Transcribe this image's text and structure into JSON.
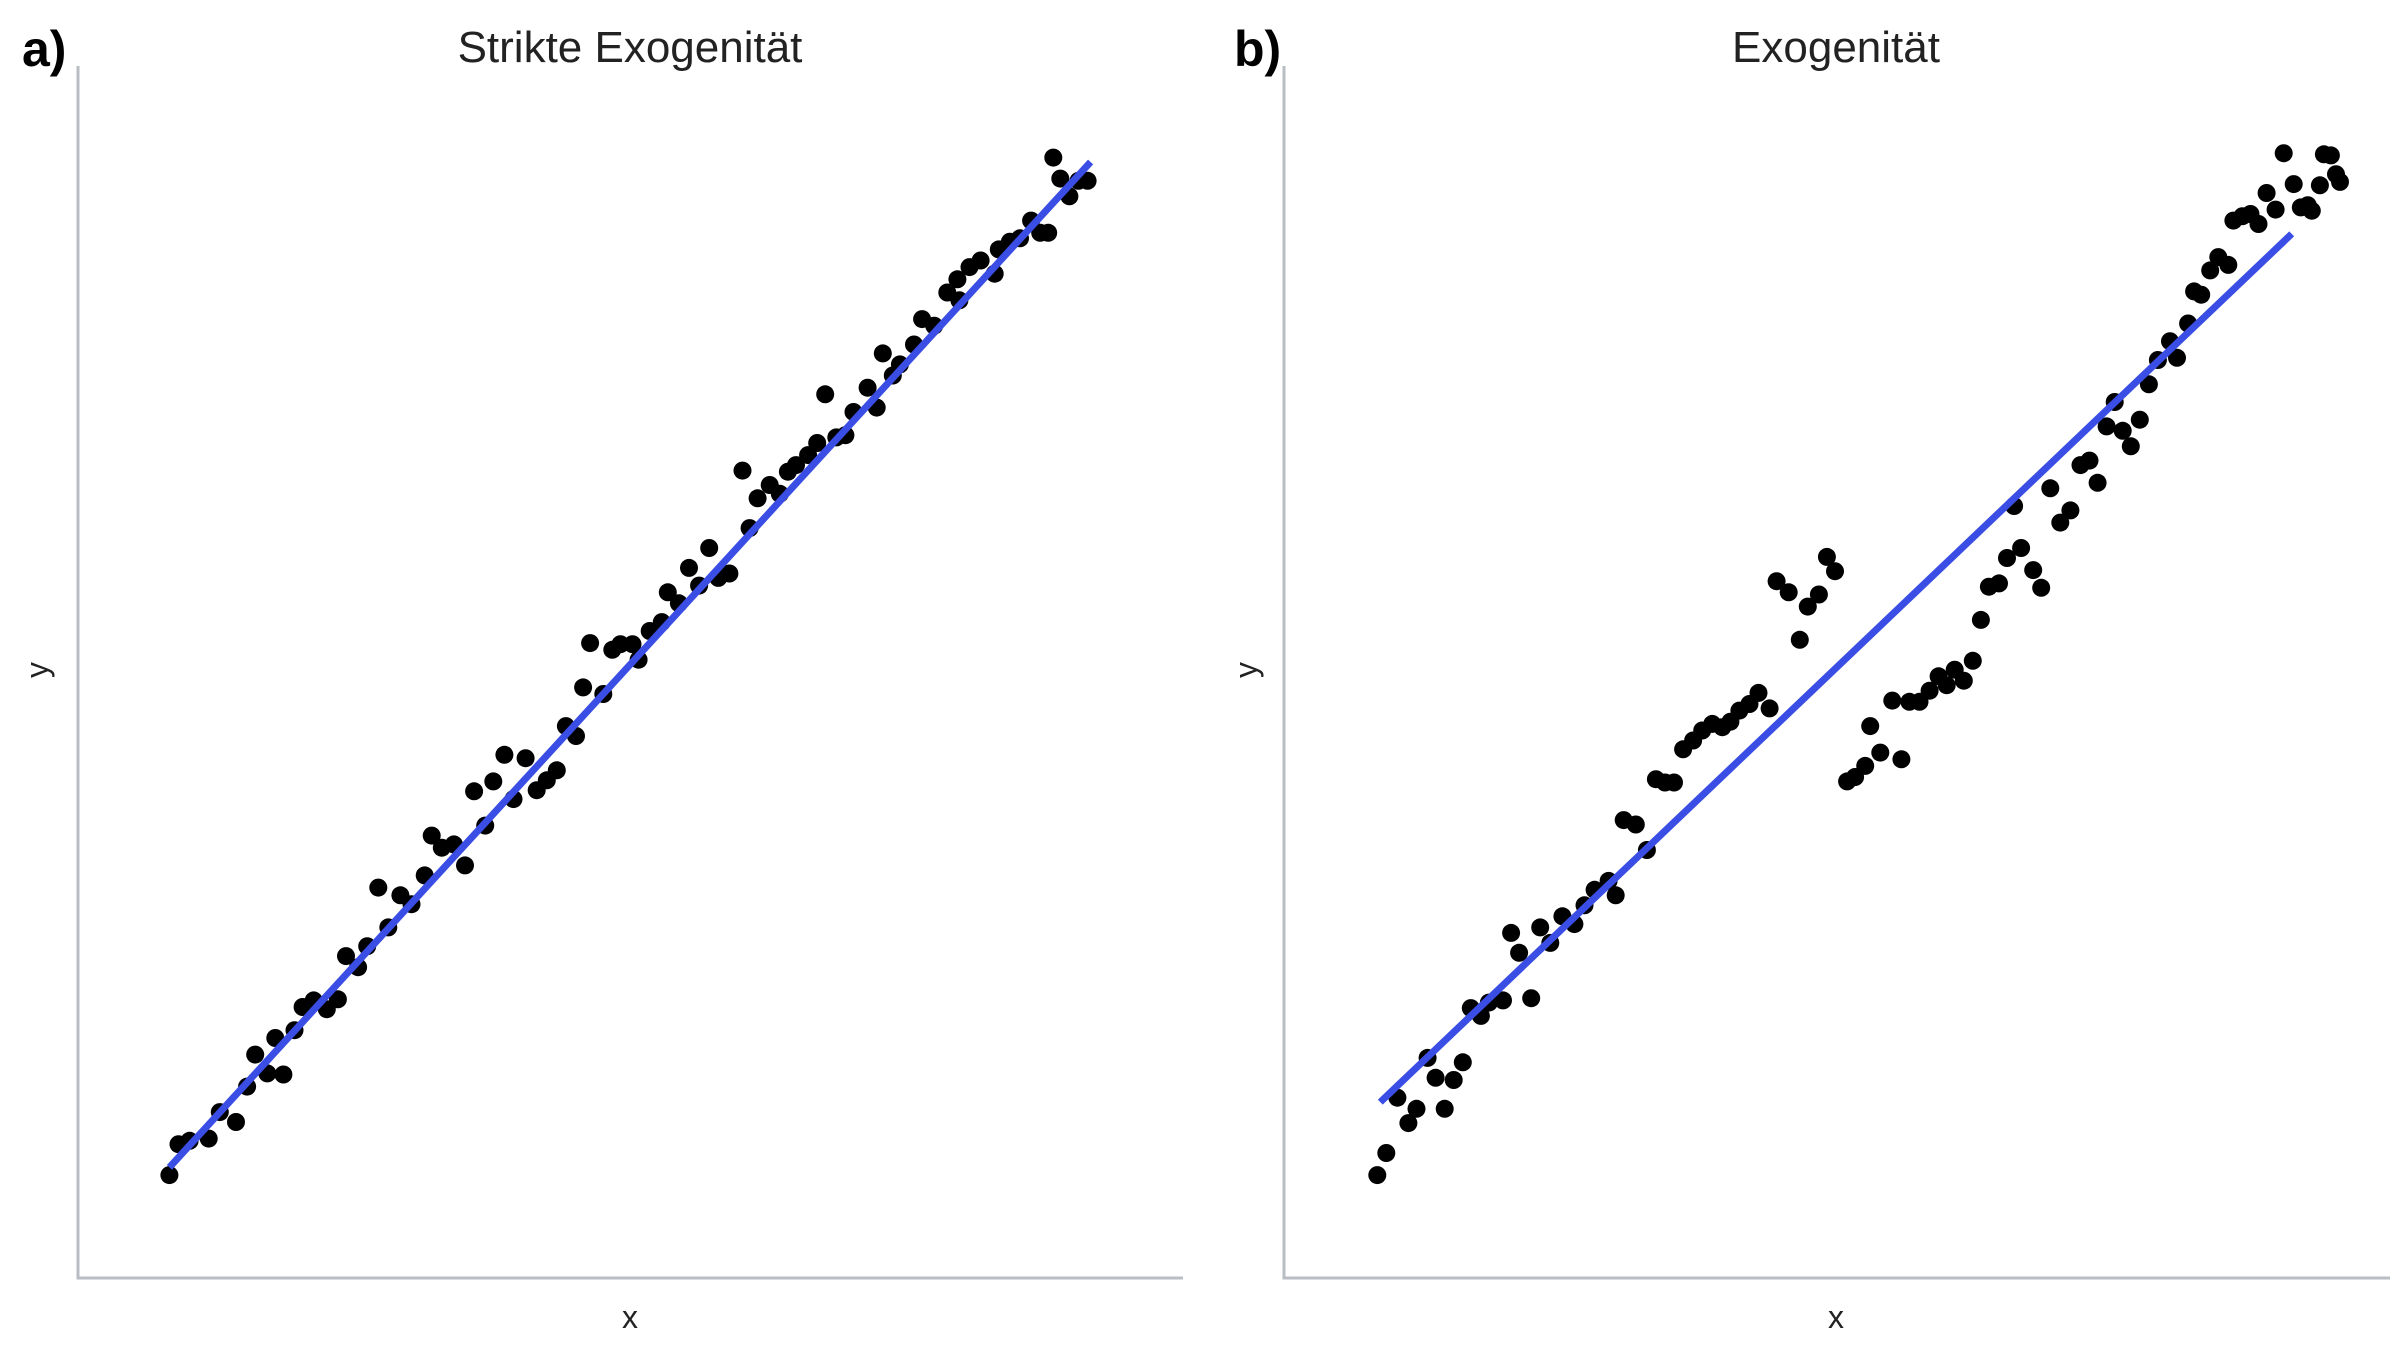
{
  "chart_data": [
    {
      "type": "scatter",
      "panel_label": "a)",
      "title": "Strikte Exogenität",
      "xlabel": "x",
      "ylabel": "y",
      "xlim": [
        0,
        100
      ],
      "ylim": [
        0,
        100
      ],
      "grid": false,
      "point_color": "#000000",
      "line_color": "#3a4ee6",
      "fit": {
        "x": [
          4.3,
          95.6
        ],
        "y": [
          5.3,
          96.2
        ]
      },
      "points": [
        [
          4.3,
          4.6
        ],
        [
          5.2,
          7.4
        ],
        [
          6.3,
          7.7
        ],
        [
          8.2,
          7.9
        ],
        [
          9.3,
          10.3
        ],
        [
          10.9,
          9.4
        ],
        [
          12.0,
          12.6
        ],
        [
          12.8,
          15.5
        ],
        [
          14.0,
          13.8
        ],
        [
          14.8,
          17.0
        ],
        [
          15.6,
          13.7
        ],
        [
          16.7,
          17.7
        ],
        [
          17.5,
          19.8
        ],
        [
          18.6,
          20.4
        ],
        [
          19.9,
          19.6
        ],
        [
          21.0,
          20.5
        ],
        [
          21.8,
          24.4
        ],
        [
          23.0,
          23.4
        ],
        [
          23.9,
          25.3
        ],
        [
          25.0,
          30.6
        ],
        [
          26.0,
          27.0
        ],
        [
          27.2,
          29.9
        ],
        [
          28.3,
          29.1
        ],
        [
          29.6,
          31.7
        ],
        [
          30.3,
          35.3
        ],
        [
          31.3,
          34.2
        ],
        [
          32.5,
          34.5
        ],
        [
          33.6,
          32.6
        ],
        [
          34.5,
          39.3
        ],
        [
          35.6,
          36.2
        ],
        [
          36.4,
          40.2
        ],
        [
          37.5,
          42.6
        ],
        [
          38.4,
          38.6
        ],
        [
          39.6,
          42.3
        ],
        [
          40.7,
          39.4
        ],
        [
          41.7,
          40.3
        ],
        [
          42.7,
          41.2
        ],
        [
          43.6,
          45.2
        ],
        [
          44.6,
          44.3
        ],
        [
          45.3,
          48.7
        ],
        [
          46.0,
          52.7
        ],
        [
          47.3,
          48.1
        ],
        [
          48.2,
          52.1
        ],
        [
          49.0,
          52.6
        ],
        [
          50.2,
          52.6
        ],
        [
          50.8,
          51.2
        ],
        [
          51.9,
          53.8
        ],
        [
          53.1,
          54.6
        ],
        [
          53.7,
          57.3
        ],
        [
          54.8,
          56.3
        ],
        [
          55.8,
          59.5
        ],
        [
          56.8,
          57.9
        ],
        [
          57.8,
          61.3
        ],
        [
          58.7,
          58.6
        ],
        [
          59.8,
          59.0
        ],
        [
          61.1,
          68.3
        ],
        [
          61.8,
          63.1
        ],
        [
          62.6,
          65.8
        ],
        [
          63.8,
          67.0
        ],
        [
          64.8,
          66.2
        ],
        [
          65.6,
          68.2
        ],
        [
          66.4,
          68.8
        ],
        [
          67.6,
          69.7
        ],
        [
          68.5,
          70.8
        ],
        [
          69.3,
          75.2
        ],
        [
          70.4,
          71.3
        ],
        [
          71.3,
          71.5
        ],
        [
          72.1,
          73.6
        ],
        [
          73.5,
          75.8
        ],
        [
          74.4,
          74.0
        ],
        [
          75.0,
          78.9
        ],
        [
          76.0,
          76.9
        ],
        [
          76.7,
          77.9
        ],
        [
          78.1,
          79.7
        ],
        [
          78.9,
          82.0
        ],
        [
          80.1,
          81.4
        ],
        [
          81.4,
          84.4
        ],
        [
          82.4,
          85.6
        ],
        [
          82.6,
          83.7
        ],
        [
          83.6,
          86.7
        ],
        [
          84.7,
          87.3
        ],
        [
          86.1,
          86.1
        ],
        [
          86.5,
          88.3
        ],
        [
          87.6,
          89.0
        ],
        [
          88.6,
          89.3
        ],
        [
          89.7,
          90.9
        ],
        [
          90.6,
          89.8
        ],
        [
          91.4,
          89.8
        ],
        [
          91.9,
          96.6
        ],
        [
          92.6,
          94.7
        ],
        [
          93.5,
          93.1
        ],
        [
          94.4,
          94.5
        ],
        [
          95.3,
          94.5
        ]
      ]
    },
    {
      "type": "scatter",
      "panel_label": "b)",
      "title": "Exogenität",
      "xlabel": "x",
      "ylabel": "y",
      "xlim": [
        0,
        100
      ],
      "ylim": [
        0,
        100
      ],
      "grid": false,
      "point_color": "#000000",
      "line_color": "#3a4ee6",
      "fit": {
        "x": [
          4.6,
          95.2
        ],
        "y": [
          11.2,
          89.7
        ]
      },
      "points": [
        [
          4.3,
          4.6
        ],
        [
          5.2,
          6.6
        ],
        [
          6.3,
          11.6
        ],
        [
          7.4,
          9.3
        ],
        [
          8.2,
          10.6
        ],
        [
          9.3,
          15.2
        ],
        [
          10.1,
          13.4
        ],
        [
          11.0,
          10.6
        ],
        [
          11.9,
          13.2
        ],
        [
          12.8,
          14.8
        ],
        [
          13.6,
          19.7
        ],
        [
          14.6,
          19.0
        ],
        [
          15.4,
          20.2
        ],
        [
          16.8,
          20.4
        ],
        [
          17.6,
          26.5
        ],
        [
          18.4,
          24.7
        ],
        [
          19.6,
          20.6
        ],
        [
          20.5,
          27.0
        ],
        [
          21.5,
          25.6
        ],
        [
          22.7,
          28.0
        ],
        [
          23.9,
          27.3
        ],
        [
          24.9,
          29.0
        ],
        [
          25.9,
          30.4
        ],
        [
          27.3,
          31.2
        ],
        [
          28.0,
          29.9
        ],
        [
          28.8,
          36.7
        ],
        [
          30.0,
          36.3
        ],
        [
          31.1,
          34.0
        ],
        [
          32.0,
          40.4
        ],
        [
          32.9,
          40.1
        ],
        [
          33.8,
          40.1
        ],
        [
          34.7,
          43.1
        ],
        [
          35.7,
          43.9
        ],
        [
          36.6,
          44.8
        ],
        [
          37.6,
          45.4
        ],
        [
          38.6,
          45.1
        ],
        [
          39.4,
          45.6
        ],
        [
          40.3,
          46.6
        ],
        [
          41.3,
          47.2
        ],
        [
          42.2,
          48.2
        ],
        [
          43.3,
          46.8
        ],
        [
          44.0,
          58.3
        ],
        [
          45.2,
          57.3
        ],
        [
          46.3,
          53.0
        ],
        [
          47.1,
          56.0
        ],
        [
          48.2,
          57.1
        ],
        [
          49.0,
          60.5
        ],
        [
          49.8,
          59.2
        ],
        [
          51.0,
          40.2
        ],
        [
          51.8,
          40.6
        ],
        [
          52.8,
          41.6
        ],
        [
          53.3,
          45.2
        ],
        [
          54.3,
          42.8
        ],
        [
          55.5,
          47.5
        ],
        [
          56.4,
          42.2
        ],
        [
          57.2,
          47.4
        ],
        [
          58.2,
          47.4
        ],
        [
          59.2,
          48.4
        ],
        [
          60.1,
          49.7
        ],
        [
          60.9,
          48.9
        ],
        [
          61.7,
          50.3
        ],
        [
          62.6,
          49.3
        ],
        [
          63.5,
          51.1
        ],
        [
          64.3,
          54.8
        ],
        [
          65.1,
          57.8
        ],
        [
          66.1,
          58.1
        ],
        [
          66.9,
          60.4
        ],
        [
          67.6,
          65.1
        ],
        [
          68.3,
          61.3
        ],
        [
          69.5,
          59.3
        ],
        [
          70.3,
          57.7
        ],
        [
          71.2,
          66.7
        ],
        [
          72.2,
          63.6
        ],
        [
          73.2,
          64.7
        ],
        [
          74.2,
          68.8
        ],
        [
          75.1,
          69.2
        ],
        [
          75.9,
          67.2
        ],
        [
          76.8,
          72.3
        ],
        [
          77.6,
          74.5
        ],
        [
          78.4,
          71.9
        ],
        [
          79.2,
          70.5
        ],
        [
          80.1,
          72.9
        ],
        [
          81.0,
          76.1
        ],
        [
          81.9,
          78.3
        ],
        [
          83.1,
          80.0
        ],
        [
          83.8,
          78.5
        ],
        [
          84.9,
          81.6
        ],
        [
          85.5,
          84.5
        ],
        [
          86.2,
          84.2
        ],
        [
          87.1,
          86.4
        ],
        [
          87.9,
          87.6
        ],
        [
          88.9,
          86.9
        ],
        [
          89.4,
          90.9
        ],
        [
          90.3,
          91.3
        ],
        [
          91.1,
          91.5
        ],
        [
          91.9,
          90.6
        ],
        [
          92.7,
          93.4
        ],
        [
          93.6,
          91.9
        ],
        [
          94.4,
          97.0
        ],
        [
          95.4,
          94.2
        ],
        [
          96.1,
          92.1
        ],
        [
          96.8,
          92.3
        ],
        [
          97.2,
          91.8
        ],
        [
          98.0,
          94.1
        ],
        [
          98.4,
          96.9
        ],
        [
          99.1,
          96.8
        ],
        [
          99.6,
          95.1
        ],
        [
          100.0,
          94.4
        ]
      ]
    }
  ]
}
